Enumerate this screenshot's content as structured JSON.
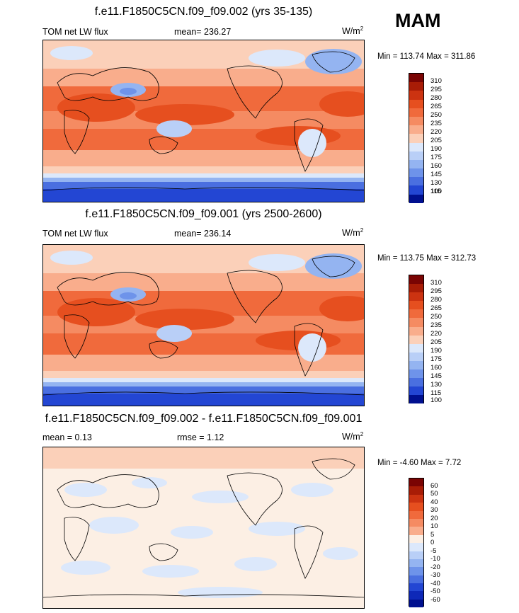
{
  "season": "MAM",
  "units_base": "W/m",
  "units_exp": "2",
  "panels": [
    {
      "title": "f.e11.F1850C5CN.f09_f09.002 (yrs 35-135)",
      "left_label": "TOM net LW flux",
      "stat_label": "mean= 236.27",
      "minmax": "Min = 113.74 Max = 311.86",
      "levels": [
        "310",
        "295",
        "280",
        "265",
        "250",
        "235",
        "220",
        "205",
        "190",
        "175",
        "160",
        "145",
        "130",
        "115",
        "100"
      ]
    },
    {
      "title": "f.e11.F1850C5CN.f09_f09.001 (yrs 2500-2600)",
      "left_label": "TOM net LW flux",
      "stat_label": "mean= 236.14",
      "minmax": "Min = 113.75 Max = 312.73",
      "levels": [
        "310",
        "295",
        "280",
        "265",
        "250",
        "235",
        "220",
        "205",
        "190",
        "175",
        "160",
        "145",
        "130",
        "115",
        "100"
      ]
    },
    {
      "title": "f.e11.F1850C5CN.f09_f09.002 - f.e11.F1850C5CN.f09_f09.001",
      "left_label": "mean =   0.13",
      "stat_label": "rmse =   1.12",
      "minmax": "Min =  -4.60 Max =   7.72",
      "levels": [
        "60",
        "50",
        "40",
        "30",
        "20",
        "10",
        "5",
        "0",
        "-5",
        "-10",
        "-20",
        "-30",
        "-40",
        "-50",
        "-60"
      ]
    }
  ],
  "colors": {
    "scale": [
      "#7a0403",
      "#a81c06",
      "#cc3311",
      "#e64f1f",
      "#f06a3c",
      "#f58b62",
      "#f9ad8c",
      "#fbd0b9",
      "#fcefe4",
      "#dce8fb",
      "#b9cff7",
      "#94b4f1",
      "#6e93ea",
      "#4a6fe0",
      "#2346d3",
      "#0e28b8",
      "#00108f"
    ],
    "land_outline": "#000000"
  }
}
